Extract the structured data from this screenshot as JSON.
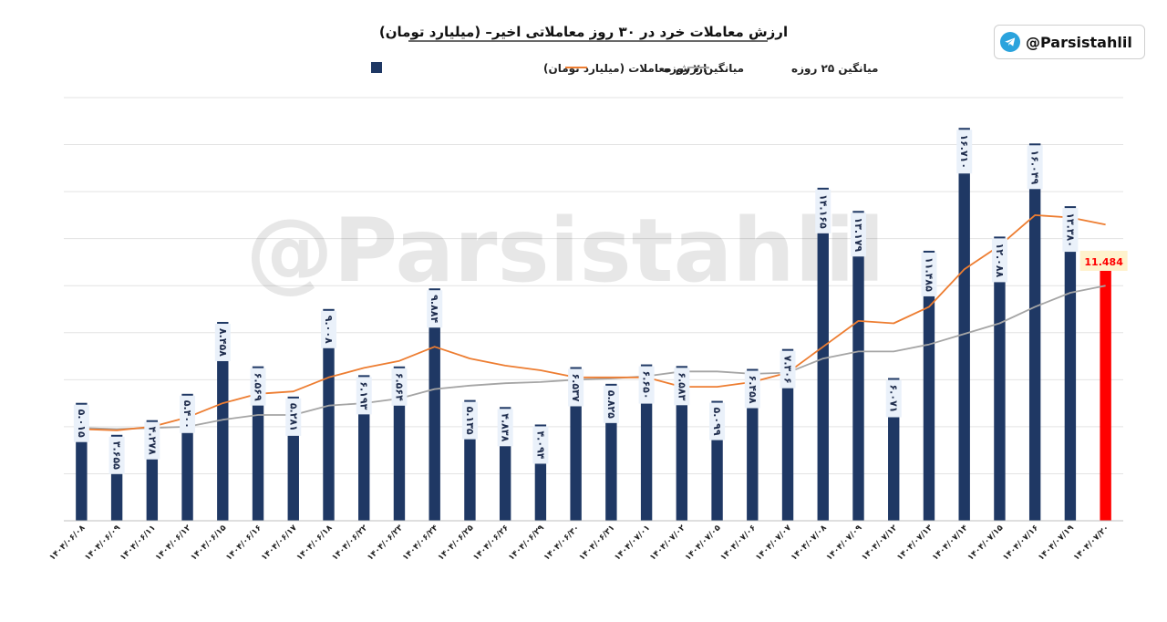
{
  "badge": {
    "handle": "@Parsistahlil",
    "icon": "telegram-icon"
  },
  "watermark": "@Parsistahlil",
  "chart_data": {
    "type": "bar",
    "title": "ارزش معاملات خرد در ۳۰ روز معاملاتی اخیر– (میلیارد تومان)",
    "legend": {
      "placement": "top",
      "entries": [
        "ارزش معاملات (میلیارد تومان)",
        "میانگین ۷ روزه",
        "میانگین ۲۵ روزه"
      ]
    },
    "colors": {
      "bars": "#1f3864",
      "last_bar": "#ff0000",
      "ma7": "#ed7d31",
      "ma25": "#a5a5a5",
      "label_bg": "#eaf1fa",
      "last_label_bg": "#fff2cc",
      "last_label_text": "#ff0000"
    },
    "ylim": [
      0,
      18
    ],
    "grid": true,
    "categories": [
      "۱۴۰۴/۰۶/۰۸",
      "۱۴۰۴/۰۶/۰۹",
      "۱۴۰۴/۰۶/۱۱",
      "۱۴۰۴/۰۶/۱۲",
      "۱۴۰۴/۰۶/۱۵",
      "۱۴۰۴/۰۶/۱۶",
      "۱۴۰۴/۰۶/۱۷",
      "۱۴۰۴/۰۶/۱۸",
      "۱۴۰۴/۰۶/۲۲",
      "۱۴۰۴/۰۶/۲۳",
      "۱۴۰۴/۰۶/۲۴",
      "۱۴۰۴/۰۶/۲۵",
      "۱۴۰۴/۰۶/۲۶",
      "۱۴۰۴/۰۶/۲۹",
      "۱۴۰۴/۰۶/۳۰",
      "۱۴۰۴/۰۶/۳۱",
      "۱۴۰۴/۰۷/۰۱",
      "۱۴۰۴/۰۷/۰۲",
      "۱۴۰۴/۰۷/۰۵",
      "۱۴۰۴/۰۷/۰۶",
      "۱۴۰۴/۰۷/۰۷",
      "۱۴۰۴/۰۷/۰۸",
      "۱۴۰۴/۰۷/۰۹",
      "۱۴۰۴/۰۷/۱۲",
      "۱۴۰۴/۰۷/۱۳",
      "۱۴۰۴/۰۷/۱۴",
      "۱۴۰۴/۰۷/۱۵",
      "۱۴۰۴/۰۷/۱۶",
      "۱۴۰۴/۰۷/۱۹",
      "۱۴۰۴/۰۷/۲۰"
    ],
    "series": [
      {
        "name": "ارزش معاملات (میلیارد تومان)",
        "kind": "bar",
        "values": [
          5.015,
          3.655,
          4.278,
          5.4,
          8.458,
          6.569,
          5.281,
          9.008,
          6.193,
          6.564,
          9.884,
          5.135,
          4.838,
          4.094,
          6.537,
          5.825,
          6.65,
          6.583,
          5.099,
          6.458,
          7.306,
          14.165,
          13.179,
          6.071,
          11.485,
          16.71,
          12.088,
          16.049,
          13.38,
          11.484
        ],
        "labels": [
          "۵.۰۱۵",
          "۳.۶۵۵",
          "۴.۲۷۸",
          "۵.۴۰۰",
          "۸.۴۵۸",
          "۶.۵۶۹",
          "۵.۲۸۱",
          "۹.۰۰۸",
          "۶.۱۹۳",
          "۶.۵۶۴",
          "۹.۸۸۴",
          "۵.۱۳۵",
          "۴.۸۳۸",
          "۴.۰۹۴",
          "۶.۵۳۷",
          "۵.۸۲۵",
          "۶.۶۵۰",
          "۶.۵۸۳",
          "۵.۰۹۹",
          "۶.۴۵۸",
          "۷.۳۰۶",
          "۱۴.۱۶۵",
          "۱۳.۱۷۹",
          "۶.۰۷۱",
          "۱۱.۴۸۵",
          "۱۶.۷۱۰",
          "۱۲.۰۸۸",
          "۱۶.۰۴۹",
          "۱۳.۳۸۰",
          "11.484"
        ]
      },
      {
        "name": "میانگین ۷ روزه",
        "kind": "line",
        "values": [
          3.9,
          3.85,
          4.0,
          4.4,
          5.0,
          5.4,
          5.5,
          6.1,
          6.5,
          6.8,
          7.4,
          6.9,
          6.6,
          6.4,
          6.1,
          6.1,
          6.1,
          5.7,
          5.7,
          5.9,
          6.3,
          7.4,
          8.5,
          8.4,
          9.1,
          10.7,
          11.7,
          13.0,
          12.9,
          12.6
        ]
      },
      {
        "name": "میانگین ۲۵ روزه",
        "kind": "line",
        "values": [
          3.95,
          3.9,
          3.95,
          4.0,
          4.3,
          4.5,
          4.5,
          4.9,
          5.0,
          5.2,
          5.6,
          5.75,
          5.85,
          5.9,
          6.0,
          6.05,
          6.15,
          6.35,
          6.35,
          6.25,
          6.3,
          6.9,
          7.2,
          7.2,
          7.5,
          7.95,
          8.4,
          9.1,
          9.7,
          10.0
        ]
      }
    ]
  }
}
